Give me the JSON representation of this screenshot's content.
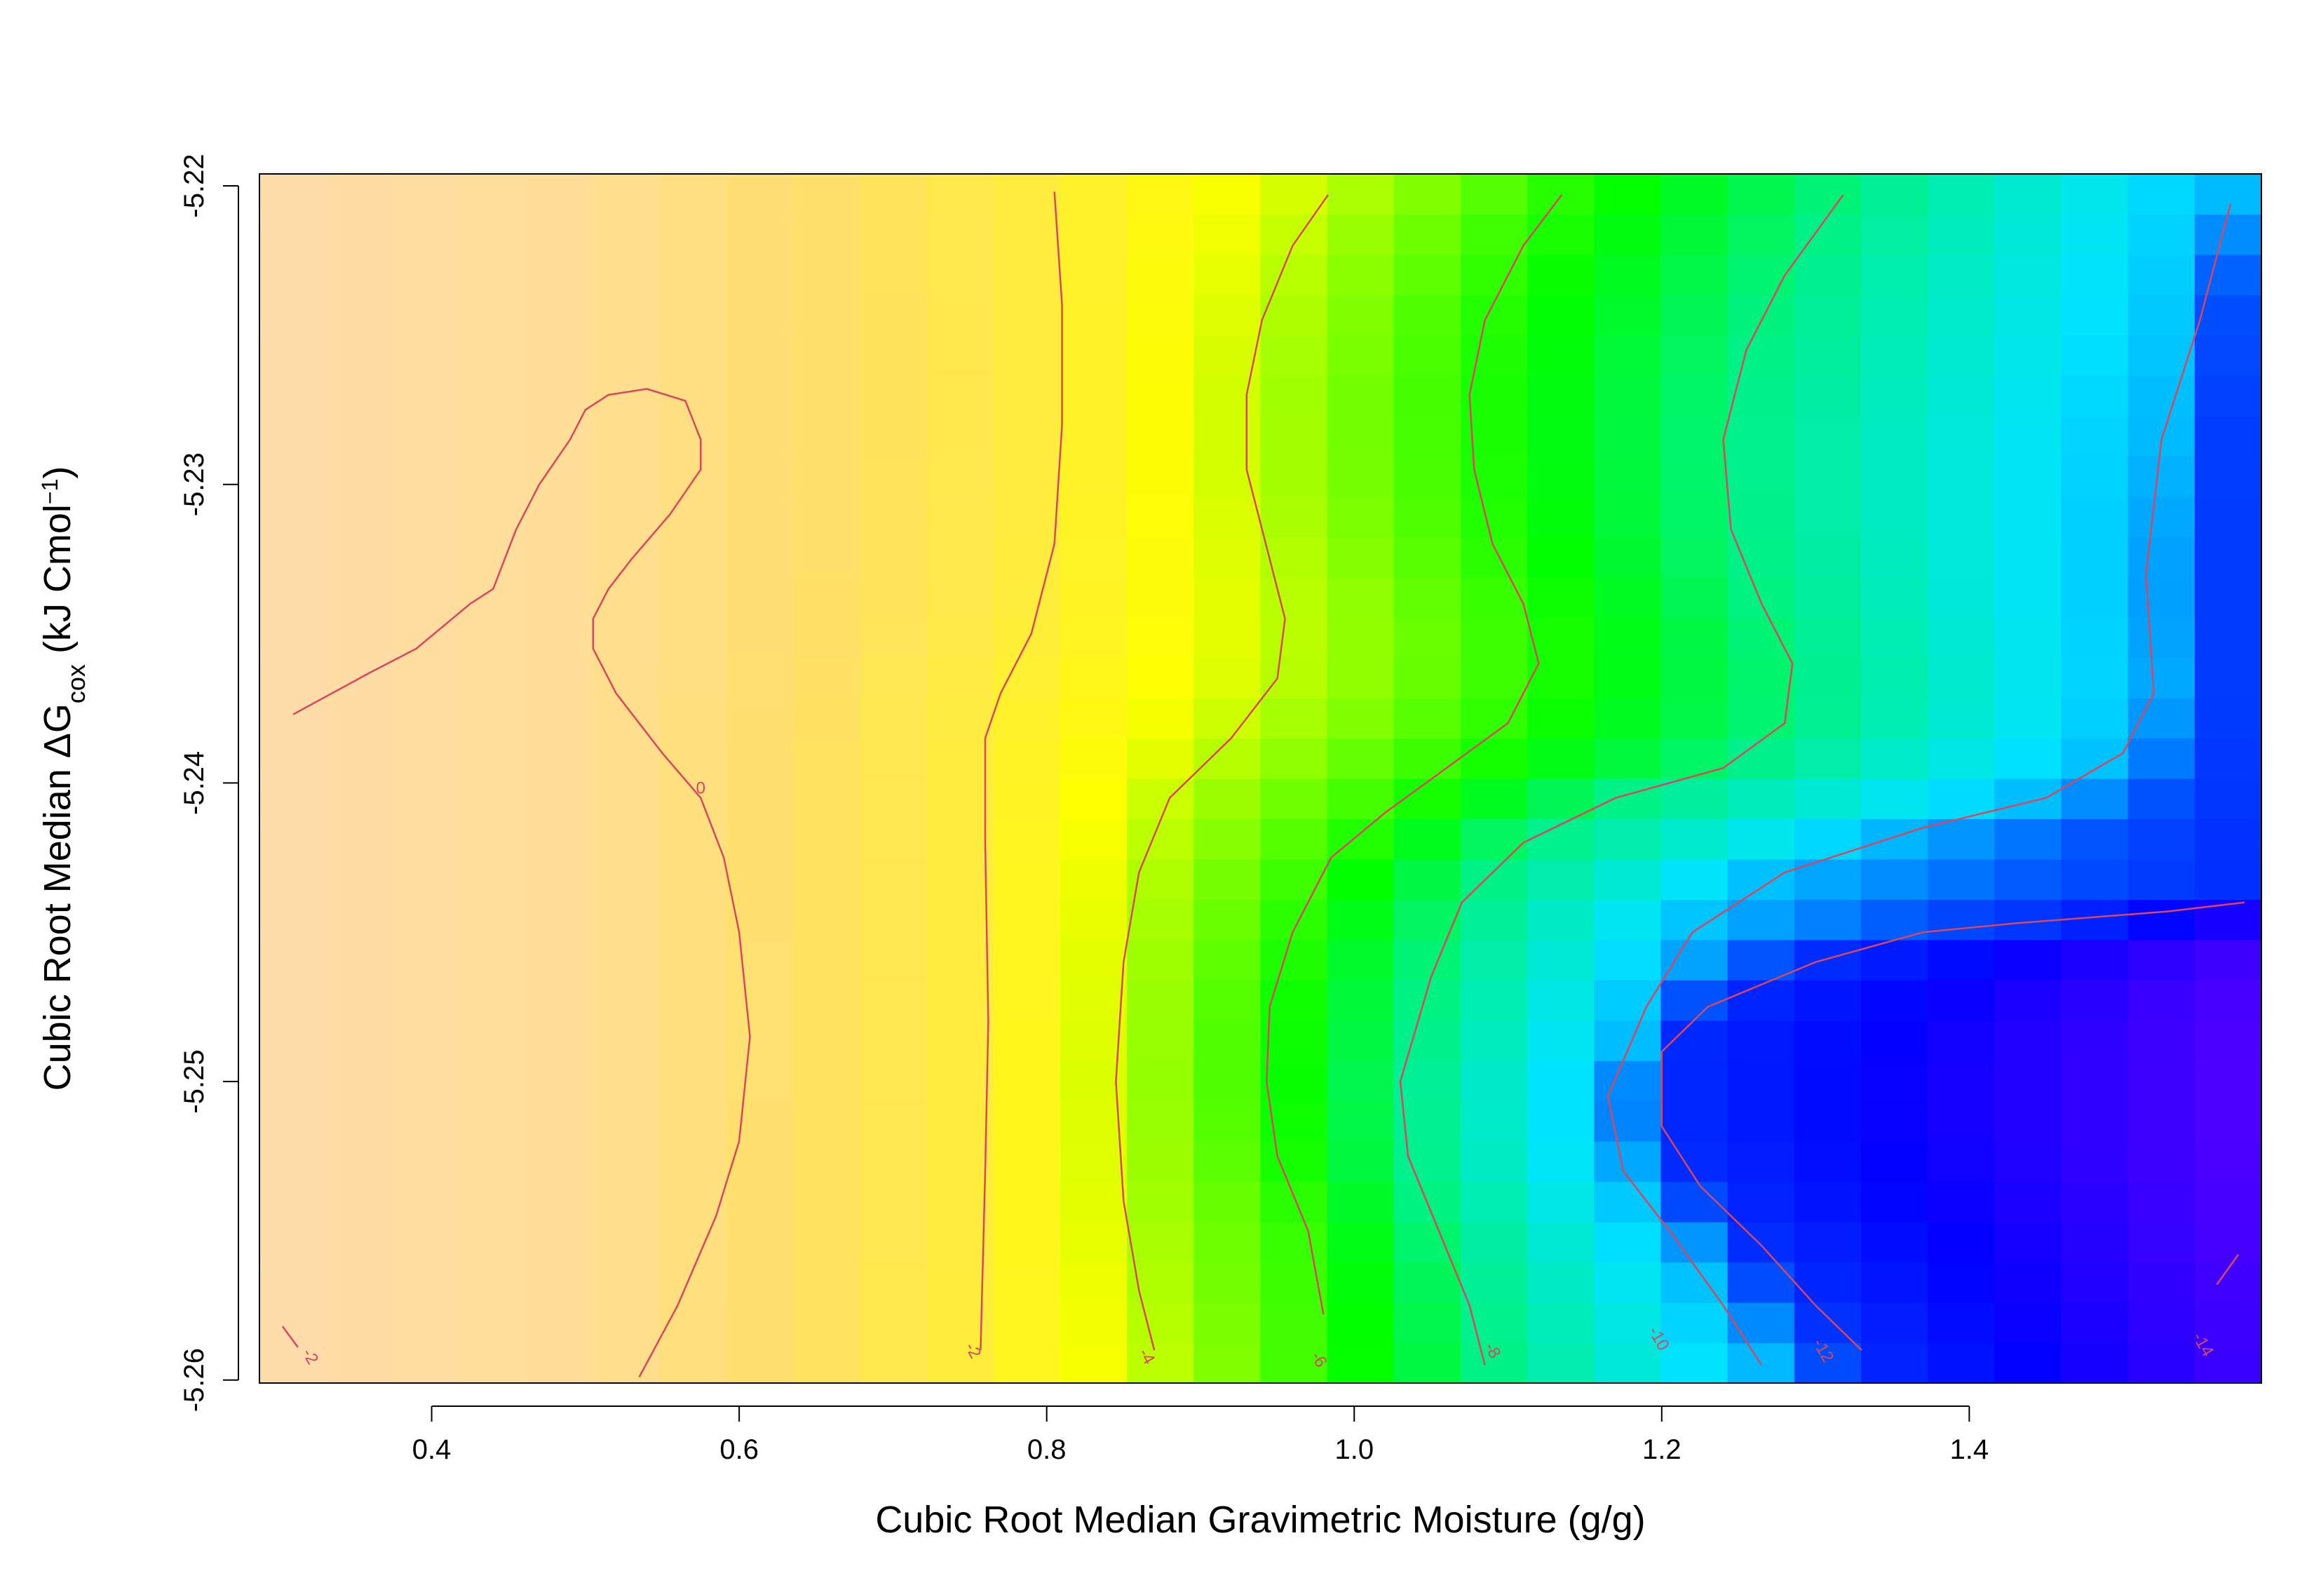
{
  "chart_data": {
    "type": "heatmap",
    "title": "",
    "xlabel": "Cubic Root Median Gravimetric Moisture (g/g)",
    "ylabel_main": "Cubic Root Median ΔG",
    "ylabel_sub": "cox",
    "ylabel_unit_pre": " (kJ Cmol",
    "ylabel_sup": "−1",
    "ylabel_unit_post": ")",
    "xlim": [
      0.288,
      1.59
    ],
    "ylim": [
      -5.2601,
      -5.2196
    ],
    "x_ticks": [
      0.4,
      0.6,
      0.8,
      1.0,
      1.2,
      1.4
    ],
    "x_tick_labels": [
      "0.4",
      "0.6",
      "0.8",
      "1.0",
      "1.2",
      "1.4"
    ],
    "y_ticks": [
      -5.26,
      -5.25,
      -5.24,
      -5.23,
      -5.22
    ],
    "y_tick_labels": [
      "-5.26",
      "-5.25",
      "-5.24",
      "-5.23",
      "-5.22"
    ],
    "grid": false,
    "legend": "none",
    "color_scale": [
      "#ffdcb4",
      "#ffe066",
      "#ffff00",
      "#00ff00",
      "#00e5ff",
      "#0050ff",
      "#0000ff",
      "#5a00ff"
    ],
    "contour_color": "#d9475f",
    "contours": [
      {
        "level": 0,
        "label": "0",
        "points": [
          [
            0.31,
            -5.2377
          ],
          [
            0.36,
            -5.2363
          ],
          [
            0.39,
            -5.2355
          ],
          [
            0.425,
            -5.234
          ],
          [
            0.44,
            -5.2335
          ],
          [
            0.455,
            -5.2315
          ],
          [
            0.47,
            -5.23
          ],
          [
            0.49,
            -5.2285
          ],
          [
            0.5,
            -5.2275
          ],
          [
            0.515,
            -5.227
          ],
          [
            0.54,
            -5.2268
          ],
          [
            0.565,
            -5.2272
          ],
          [
            0.575,
            -5.2285
          ],
          [
            0.575,
            -5.2295
          ],
          [
            0.555,
            -5.231
          ],
          [
            0.53,
            -5.2325
          ],
          [
            0.515,
            -5.2335
          ],
          [
            0.505,
            -5.2345
          ],
          [
            0.505,
            -5.2355
          ],
          [
            0.52,
            -5.237
          ],
          [
            0.55,
            -5.239
          ],
          [
            0.575,
            -5.2405
          ],
          [
            0.59,
            -5.2425
          ],
          [
            0.6,
            -5.245
          ],
          [
            0.607,
            -5.2485
          ],
          [
            0.6,
            -5.252
          ],
          [
            0.585,
            -5.2545
          ],
          [
            0.56,
            -5.2575
          ],
          [
            0.535,
            -5.2599
          ]
        ]
      },
      {
        "level": -2,
        "label": "-2",
        "points": [
          [
            0.805,
            -5.2202
          ],
          [
            0.81,
            -5.224
          ],
          [
            0.81,
            -5.228
          ],
          [
            0.805,
            -5.232
          ],
          [
            0.79,
            -5.235
          ],
          [
            0.77,
            -5.237
          ],
          [
            0.76,
            -5.2385
          ],
          [
            0.76,
            -5.242
          ],
          [
            0.762,
            -5.248
          ],
          [
            0.76,
            -5.253
          ],
          [
            0.757,
            -5.259
          ]
        ],
        "label_at": [
          0.749,
          -5.2591
        ]
      },
      {
        "level": -2,
        "label": "-2",
        "points": [
          [
            0.303,
            -5.2582
          ],
          [
            0.313,
            -5.2589
          ]
        ],
        "label_at": [
          0.318,
          -5.2593
        ]
      },
      {
        "level": -4,
        "label": "-4",
        "points": [
          [
            0.983,
            -5.2203
          ],
          [
            0.96,
            -5.222
          ],
          [
            0.94,
            -5.2245
          ],
          [
            0.93,
            -5.227
          ],
          [
            0.93,
            -5.2295
          ],
          [
            0.945,
            -5.2325
          ],
          [
            0.955,
            -5.2345
          ],
          [
            0.95,
            -5.2365
          ],
          [
            0.92,
            -5.2385
          ],
          [
            0.88,
            -5.2405
          ],
          [
            0.86,
            -5.243
          ],
          [
            0.85,
            -5.246
          ],
          [
            0.845,
            -5.25
          ],
          [
            0.85,
            -5.254
          ],
          [
            0.86,
            -5.257
          ],
          [
            0.87,
            -5.259
          ]
        ],
        "label_at": [
          0.862,
          -5.2593
        ]
      },
      {
        "level": -6,
        "label": "-6",
        "points": [
          [
            1.135,
            -5.2203
          ],
          [
            1.11,
            -5.222
          ],
          [
            1.085,
            -5.2245
          ],
          [
            1.075,
            -5.227
          ],
          [
            1.078,
            -5.2295
          ],
          [
            1.09,
            -5.232
          ],
          [
            1.11,
            -5.234
          ],
          [
            1.12,
            -5.236
          ],
          [
            1.1,
            -5.238
          ],
          [
            1.06,
            -5.2395
          ],
          [
            1.02,
            -5.241
          ],
          [
            0.985,
            -5.2425
          ],
          [
            0.96,
            -5.245
          ],
          [
            0.945,
            -5.2475
          ],
          [
            0.943,
            -5.25
          ],
          [
            0.95,
            -5.2525
          ],
          [
            0.97,
            -5.255
          ],
          [
            0.98,
            -5.2578
          ]
        ],
        "label_at": [
          0.974,
          -5.2594
        ]
      },
      {
        "level": -8,
        "label": "-8",
        "points": [
          [
            1.318,
            -5.2203
          ],
          [
            1.28,
            -5.223
          ],
          [
            1.255,
            -5.2255
          ],
          [
            1.24,
            -5.2285
          ],
          [
            1.245,
            -5.2315
          ],
          [
            1.265,
            -5.234
          ],
          [
            1.285,
            -5.236
          ],
          [
            1.28,
            -5.238
          ],
          [
            1.24,
            -5.2395
          ],
          [
            1.17,
            -5.2405
          ],
          [
            1.11,
            -5.242
          ],
          [
            1.07,
            -5.244
          ],
          [
            1.05,
            -5.2465
          ],
          [
            1.03,
            -5.25
          ],
          [
            1.035,
            -5.2525
          ],
          [
            1.055,
            -5.255
          ],
          [
            1.075,
            -5.2575
          ],
          [
            1.085,
            -5.2595
          ]
        ],
        "label_at": [
          1.087,
          -5.2591
        ]
      },
      {
        "level": -10,
        "label": "-10",
        "points": [
          [
            1.57,
            -5.2206
          ],
          [
            1.55,
            -5.2245
          ],
          [
            1.525,
            -5.2285
          ],
          [
            1.515,
            -5.233
          ],
          [
            1.52,
            -5.237
          ],
          [
            1.5,
            -5.239
          ],
          [
            1.45,
            -5.2405
          ],
          [
            1.37,
            -5.2415
          ],
          [
            1.28,
            -5.243
          ],
          [
            1.22,
            -5.245
          ],
          [
            1.19,
            -5.2475
          ],
          [
            1.165,
            -5.2505
          ],
          [
            1.175,
            -5.253
          ],
          [
            1.205,
            -5.255
          ],
          [
            1.24,
            -5.2575
          ],
          [
            1.265,
            -5.2595
          ]
        ],
        "label_at": [
          1.195,
          -5.2587
        ]
      },
      {
        "level": -12,
        "label": "-12",
        "points": [
          [
            1.579,
            -5.244
          ],
          [
            1.53,
            -5.2443
          ],
          [
            1.43,
            -5.2447
          ],
          [
            1.37,
            -5.245
          ],
          [
            1.3,
            -5.246
          ],
          [
            1.23,
            -5.2475
          ],
          [
            1.2,
            -5.249
          ],
          [
            1.2,
            -5.2515
          ],
          [
            1.225,
            -5.2535
          ],
          [
            1.265,
            -5.2555
          ],
          [
            1.3,
            -5.2575
          ],
          [
            1.33,
            -5.259
          ]
        ],
        "label_at": [
          1.302,
          -5.2591
        ]
      },
      {
        "level": -14,
        "label": "-14",
        "points": [
          [
            1.561,
            -5.2568
          ],
          [
            1.575,
            -5.2558
          ]
        ],
        "label_at": [
          1.549,
          -5.2589
        ]
      }
    ]
  }
}
